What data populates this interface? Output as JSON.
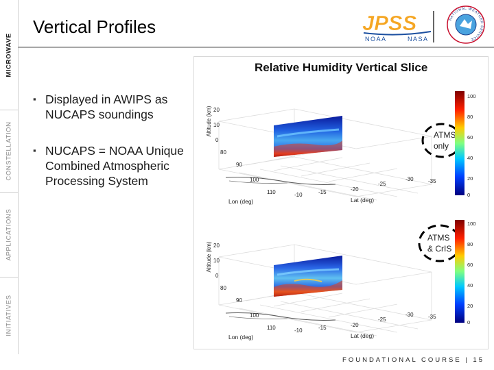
{
  "sidebar": {
    "tabs": [
      {
        "label": "MICROWAVE",
        "active": true
      },
      {
        "label": "CONSTELLATION",
        "active": false
      },
      {
        "label": "APPLICATIONS",
        "active": false
      },
      {
        "label": "INITIATIVES",
        "active": false
      }
    ]
  },
  "header": {
    "title": "Vertical Profiles",
    "logo_jpss": {
      "text": "JPSS",
      "left": "NOAA",
      "right": "NASA"
    },
    "logo_nws": {
      "text": "NATIONAL WEATHER SERVICE"
    }
  },
  "bullets": [
    {
      "text": "Displayed in AWIPS as NUCAPS soundings"
    },
    {
      "text": "NUCAPS = NOAA Unique Combined Atmospheric Processing System"
    }
  ],
  "figure": {
    "title": "Relative Humidity Vertical Slice",
    "top": {
      "annotation_line1": "ATMS",
      "annotation_line2": "only",
      "ylabel": "Altitude (km)",
      "xlabel": "Lon (deg)",
      "zlabel": "Lat (deg)",
      "alt_ticks": [
        "20",
        "10",
        "0"
      ],
      "lon_ticks": [
        "80",
        "90",
        "100",
        "110"
      ],
      "lat_ticks": [
        "-10",
        "-15",
        "-20",
        "-25",
        "-30",
        "-35"
      ],
      "colorbar_ticks": [
        "100",
        "80",
        "60",
        "40",
        "20",
        "0"
      ]
    },
    "bottom": {
      "annotation_line1": "ATMS",
      "annotation_line2": "& CrIS",
      "ylabel": "Altitude (km)",
      "xlabel": "Lon (deg)",
      "zlabel": "Lat (deg)",
      "alt_ticks": [
        "20",
        "10",
        "0"
      ],
      "lon_ticks": [
        "80",
        "90",
        "100",
        "110"
      ],
      "lat_ticks": [
        "-10",
        "-15",
        "-20",
        "-25",
        "-30",
        "-35"
      ],
      "colorbar_ticks": [
        "100",
        "80",
        "60",
        "40",
        "20",
        "0"
      ]
    }
  },
  "footer": {
    "text": "FOUNDATIONAL COURSE | 15"
  }
}
